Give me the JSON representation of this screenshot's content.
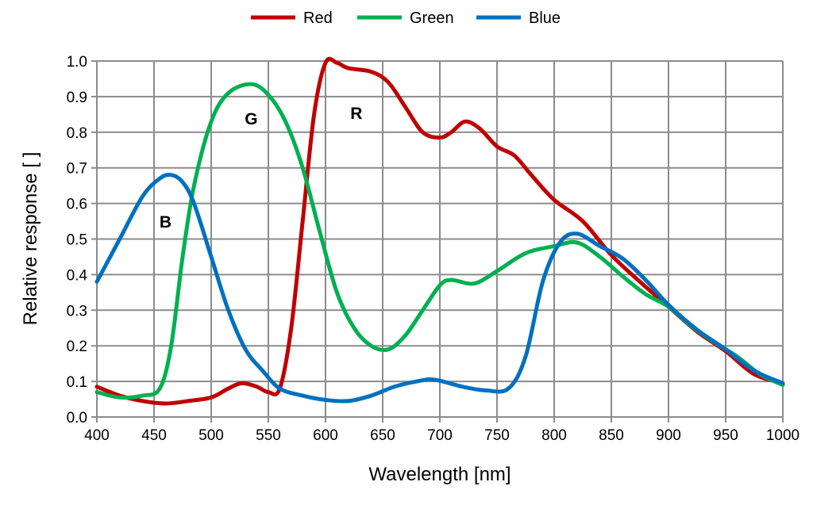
{
  "chart_data": {
    "type": "line",
    "title": "",
    "xlabel": "Wavelength [nm]",
    "ylabel": "Relative response [ ]",
    "xlim": [
      400,
      1000
    ],
    "ylim": [
      0,
      1.0
    ],
    "xticks": [
      400,
      450,
      500,
      550,
      600,
      650,
      700,
      750,
      800,
      850,
      900,
      950,
      1000
    ],
    "yticks": [
      "0.0",
      "0.1",
      "0.2",
      "0.3",
      "0.4",
      "0.5",
      "0.6",
      "0.7",
      "0.8",
      "0.9",
      "1.0"
    ],
    "grid": true,
    "legend_position": "top",
    "series": [
      {
        "name": "Red",
        "color": "#c00000",
        "x": [
          400,
          420,
          440,
          460,
          480,
          500,
          515,
          527,
          540,
          550,
          560,
          570,
          580,
          590,
          600,
          610,
          620,
          640,
          655,
          670,
          685,
          700,
          710,
          722,
          735,
          750,
          765,
          780,
          800,
          825,
          850,
          875,
          900,
          925,
          950,
          975,
          1000
        ],
        "y": [
          0.085,
          0.06,
          0.045,
          0.038,
          0.045,
          0.055,
          0.08,
          0.095,
          0.085,
          0.07,
          0.08,
          0.25,
          0.55,
          0.85,
          0.995,
          0.995,
          0.98,
          0.97,
          0.94,
          0.87,
          0.8,
          0.785,
          0.8,
          0.83,
          0.81,
          0.76,
          0.735,
          0.68,
          0.61,
          0.55,
          0.455,
          0.38,
          0.31,
          0.24,
          0.185,
          0.12,
          0.095
        ]
      },
      {
        "name": "Green",
        "color": "#00b050",
        "x": [
          400,
          420,
          440,
          455,
          465,
          475,
          485,
          500,
          515,
          535,
          550,
          565,
          580,
          595,
          610,
          625,
          640,
          655,
          670,
          685,
          700,
          710,
          730,
          750,
          775,
          800,
          820,
          840,
          860,
          880,
          900,
          920,
          940,
          960,
          980,
          1000
        ],
        "y": [
          0.07,
          0.055,
          0.06,
          0.08,
          0.2,
          0.45,
          0.65,
          0.83,
          0.91,
          0.935,
          0.905,
          0.83,
          0.7,
          0.52,
          0.35,
          0.25,
          0.2,
          0.19,
          0.23,
          0.3,
          0.37,
          0.385,
          0.375,
          0.41,
          0.46,
          0.48,
          0.49,
          0.45,
          0.395,
          0.345,
          0.31,
          0.255,
          0.21,
          0.17,
          0.12,
          0.09
        ]
      },
      {
        "name": "Blue",
        "color": "#0070c0",
        "x": [
          400,
          420,
          440,
          455,
          465,
          475,
          485,
          500,
          515,
          530,
          545,
          560,
          580,
          600,
          620,
          640,
          660,
          680,
          695,
          720,
          740,
          760,
          775,
          790,
          805,
          820,
          840,
          860,
          880,
          900,
          925,
          950,
          975,
          1000
        ],
        "y": [
          0.38,
          0.5,
          0.62,
          0.67,
          0.68,
          0.66,
          0.6,
          0.45,
          0.3,
          0.19,
          0.13,
          0.08,
          0.06,
          0.048,
          0.045,
          0.06,
          0.085,
          0.1,
          0.105,
          0.085,
          0.075,
          0.08,
          0.17,
          0.38,
          0.49,
          0.515,
          0.48,
          0.445,
          0.385,
          0.315,
          0.245,
          0.19,
          0.13,
          0.095
        ]
      }
    ],
    "annotations": [
      {
        "text": "B",
        "x": 460,
        "y": 0.55
      },
      {
        "text": "G",
        "x": 535,
        "y": 0.84
      },
      {
        "text": "R",
        "x": 627,
        "y": 0.855
      }
    ]
  }
}
